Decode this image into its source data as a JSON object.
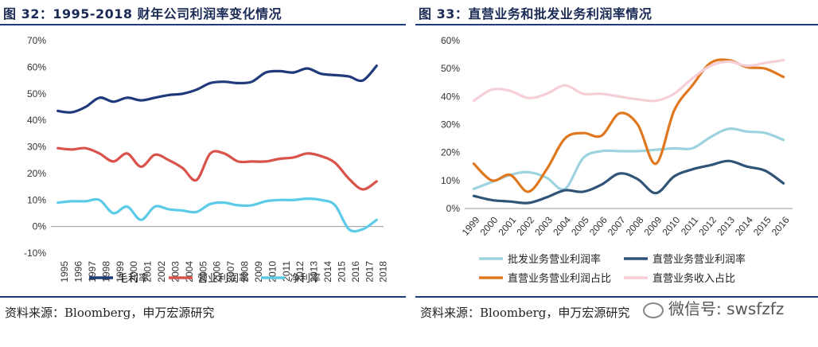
{
  "left": {
    "title": "图 32：1995-2018 财年公司利润率变化情况",
    "source": "资料来源：Bloomberg，申万宏源研究"
  },
  "right": {
    "title": "图 33：直营业务和批发业务利润率情况",
    "source": "资料来源：Bloomberg，申万宏源研究"
  },
  "watermark": "微信号: swsfzfz",
  "chart_data": [
    {
      "type": "line",
      "title": "图 32：1995-2018 财年公司利润率变化情况",
      "xlabel": "",
      "ylabel": "",
      "ylim": [
        -10,
        70
      ],
      "yticks": [
        "-10%",
        "0%",
        "10%",
        "20%",
        "30%",
        "40%",
        "50%",
        "60%",
        "70%"
      ],
      "categories": [
        "1995",
        "1996",
        "1997",
        "1998",
        "1999",
        "2000",
        "2001",
        "2002",
        "2003",
        "2004",
        "2005",
        "2006",
        "2007",
        "2008",
        "2009",
        "2010",
        "2011",
        "2012",
        "2013",
        "2014",
        "2015",
        "2016",
        "2017",
        "2018"
      ],
      "grid": false,
      "legend_position": "bottom",
      "series": [
        {
          "name": "毛利率",
          "color": "#1f3a7a",
          "values": [
            43.5,
            43.0,
            45.0,
            48.5,
            47.0,
            48.5,
            47.5,
            48.5,
            49.5,
            50.0,
            51.5,
            54.0,
            54.5,
            54.0,
            54.5,
            58.0,
            58.5,
            58.0,
            59.5,
            57.5,
            57.0,
            56.5,
            55.0,
            60.5
          ]
        },
        {
          "name": "营业利润率",
          "color": "#d9534a",
          "values": [
            29.5,
            29.0,
            29.5,
            27.5,
            24.5,
            27.5,
            22.5,
            27.0,
            25.0,
            22.0,
            17.5,
            27.5,
            27.5,
            24.5,
            24.5,
            24.5,
            25.5,
            26.0,
            27.5,
            26.5,
            24.0,
            18.0,
            14.0,
            17.0
          ]
        },
        {
          "name": "净利率",
          "color": "#5bcbe8",
          "values": [
            9.0,
            9.5,
            9.5,
            10.0,
            5.0,
            7.5,
            2.5,
            7.5,
            6.5,
            6.0,
            5.5,
            8.5,
            9.0,
            8.0,
            8.0,
            9.5,
            10.0,
            10.0,
            10.5,
            10.0,
            8.0,
            -1.0,
            -1.0,
            2.5
          ]
        }
      ]
    },
    {
      "type": "line",
      "title": "图 33：直营业务和批发业务利润率情况",
      "xlabel": "",
      "ylabel": "",
      "ylim": [
        0,
        60
      ],
      "yticks": [
        "0%",
        "10%",
        "20%",
        "30%",
        "40%",
        "50%",
        "60%"
      ],
      "categories": [
        "1999",
        "2000",
        "2001",
        "2002",
        "2003",
        "2004",
        "2005",
        "2006",
        "2007",
        "2008",
        "2009",
        "2010",
        "2011",
        "2012",
        "2013",
        "2014",
        "2015",
        "2016"
      ],
      "grid": false,
      "legend_position": "bottom",
      "series": [
        {
          "name": "批发业务营业利润率",
          "color": "#9dd3de",
          "values": [
            7.0,
            9.5,
            12.0,
            13.0,
            11.0,
            7.0,
            18.0,
            20.5,
            20.5,
            20.5,
            21.0,
            21.5,
            21.5,
            25.5,
            28.5,
            27.5,
            27.0,
            24.5
          ]
        },
        {
          "name": "直营业务营业利润率",
          "color": "#2f5478",
          "values": [
            4.5,
            3.0,
            2.5,
            2.0,
            4.0,
            6.5,
            6.0,
            8.5,
            12.5,
            10.5,
            5.5,
            11.5,
            14.0,
            15.5,
            17.0,
            15.0,
            13.5,
            9.0
          ]
        },
        {
          "name": "直营业务营业利润占比",
          "color": "#e07820",
          "values": [
            16.0,
            10.0,
            12.0,
            6.0,
            14.0,
            25.0,
            27.0,
            26.0,
            34.0,
            30.0,
            16.0,
            35.0,
            44.0,
            52.0,
            53.0,
            50.5,
            50.0,
            47.0
          ]
        },
        {
          "name": "直营业务收入占比",
          "color": "#f6cfd6",
          "values": [
            38.5,
            42.5,
            42.0,
            39.5,
            41.0,
            44.0,
            41.0,
            41.0,
            40.0,
            39.0,
            38.5,
            41.0,
            46.5,
            51.0,
            52.5,
            51.0,
            52.0,
            53.0
          ]
        }
      ]
    }
  ]
}
